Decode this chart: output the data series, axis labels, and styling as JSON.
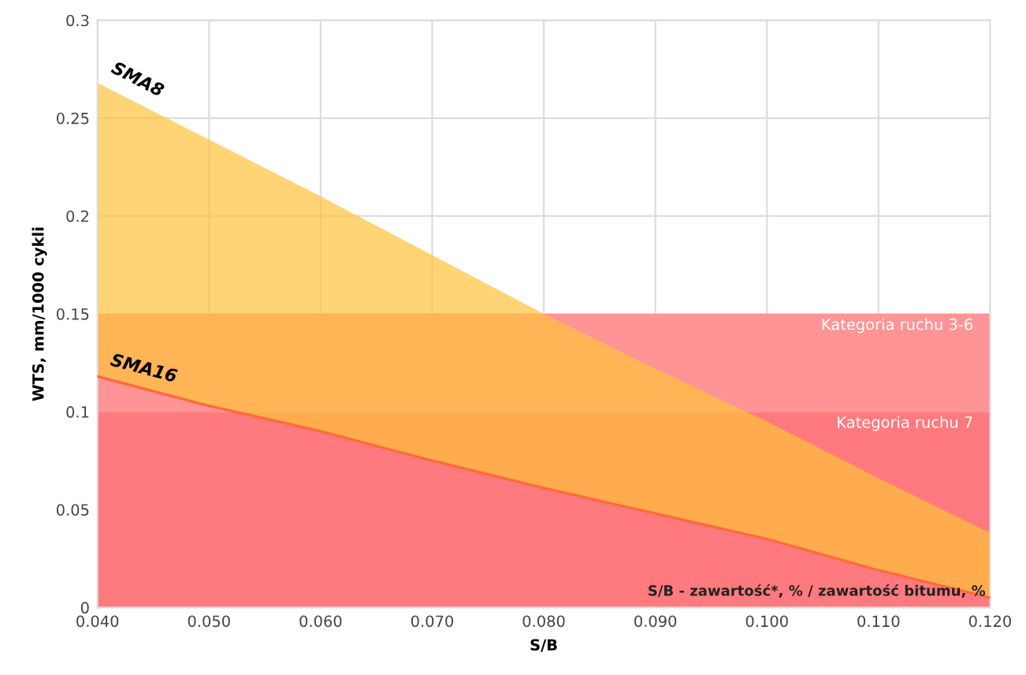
{
  "chart_data": {
    "type": "area",
    "xlabel": "S/B",
    "ylabel": "WTS, mm/1000 cykli",
    "x": [
      0.04,
      0.05,
      0.06,
      0.07,
      0.08,
      0.09,
      0.1,
      0.11,
      0.12
    ],
    "series": [
      {
        "name": "SMA8",
        "color": "#ffc23a",
        "values": [
          0.268,
          0.239,
          0.21,
          0.18,
          0.15,
          0.122,
          0.095,
          0.066,
          0.038
        ]
      },
      {
        "name": "SMA16",
        "type": "line",
        "color": "#ff6a3a",
        "values": [
          0.118,
          0.103,
          0.09,
          0.075,
          0.061,
          0.048,
          0.035,
          0.019,
          0.005
        ]
      }
    ],
    "bands": [
      {
        "axis": "y",
        "from": 0,
        "to": 0.1,
        "label": "Kategoria ruchu 7",
        "color": "#ff7a7e"
      },
      {
        "axis": "y",
        "from": 0.1,
        "to": 0.15,
        "label": "Kategoria ruchu 3-6",
        "color": "#ff9497"
      }
    ],
    "annotations": [
      "S/B - zawartość*, % / zawartość bitumu, %"
    ],
    "xlim": [
      0.04,
      0.12
    ],
    "xticks": [
      {
        "value": 0.04,
        "label": "0.040"
      },
      {
        "value": 0.05,
        "label": "0.050"
      },
      {
        "value": 0.06,
        "label": "0.060"
      },
      {
        "value": 0.07,
        "label": "0.070"
      },
      {
        "value": 0.08,
        "label": "0.080"
      },
      {
        "value": 0.09,
        "label": "0.090"
      },
      {
        "value": 0.1,
        "label": "0.100"
      },
      {
        "value": 0.11,
        "label": "0.110"
      },
      {
        "value": 0.12,
        "label": "0.120"
      }
    ],
    "ylim": [
      0,
      0.3
    ],
    "yticks": [
      0,
      0.05,
      0.1,
      0.15,
      0.2,
      0.25,
      0.3
    ],
    "grid": true
  }
}
